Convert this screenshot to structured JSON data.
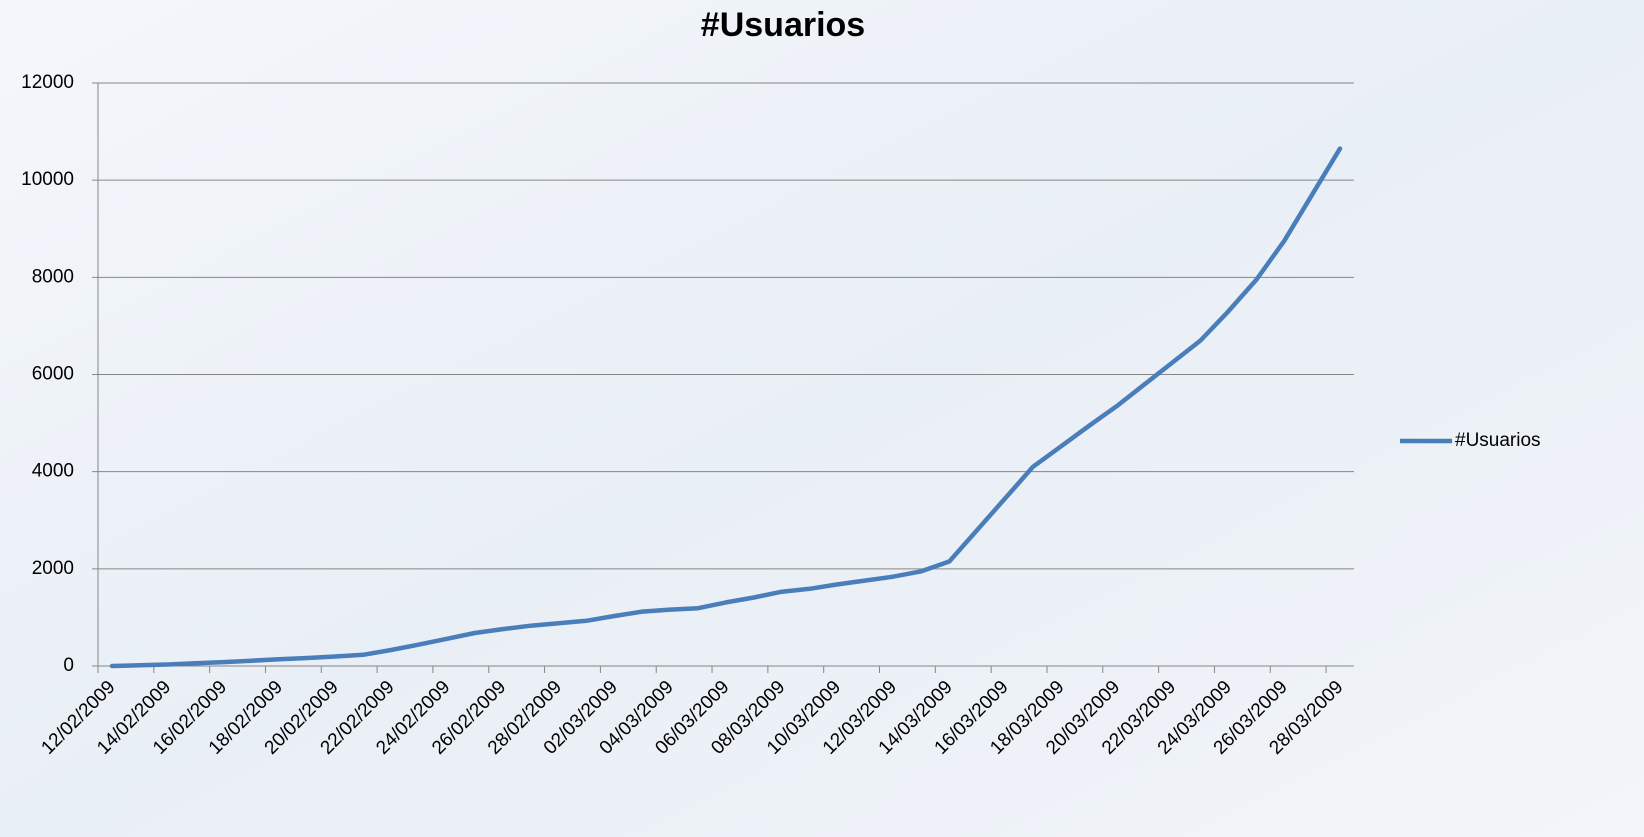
{
  "chart_data": {
    "type": "line",
    "title": "#Usuarios",
    "categories": [
      "12/02/2009",
      null,
      "14/02/2009",
      null,
      "16/02/2009",
      null,
      "18/02/2009",
      null,
      "20/02/2009",
      null,
      "22/02/2009",
      null,
      "24/02/2009",
      null,
      "26/02/2009",
      null,
      "28/02/2009",
      null,
      "02/03/2009",
      null,
      "04/03/2009",
      null,
      "06/03/2009",
      null,
      "08/03/2009",
      null,
      "10/03/2009",
      null,
      "12/03/2009",
      null,
      "14/03/2009",
      null,
      "16/03/2009",
      null,
      "18/03/2009",
      null,
      "20/03/2009",
      null,
      "22/03/2009",
      null,
      "24/03/2009",
      null,
      "26/03/2009",
      null,
      "28/03/2009"
    ],
    "series": [
      {
        "name": "#Usuarios",
        "color": "#4a7ebb",
        "values": [
          0,
          15,
          30,
          55,
          80,
          110,
          140,
          165,
          195,
          230,
          330,
          440,
          560,
          680,
          760,
          830,
          880,
          930,
          1030,
          1120,
          1160,
          1190,
          1310,
          1410,
          1530,
          1590,
          1680,
          1760,
          1840,
          1950,
          2150,
          2800,
          3450,
          4100,
          4520,
          4940,
          5350,
          5800,
          6250,
          6700,
          7300,
          7950,
          8750,
          9700,
          10650
        ]
      }
    ],
    "ylim": [
      0,
      12000
    ],
    "yticks": [
      0,
      2000,
      4000,
      6000,
      8000,
      10000,
      12000
    ],
    "grid": true,
    "legend": "right"
  }
}
